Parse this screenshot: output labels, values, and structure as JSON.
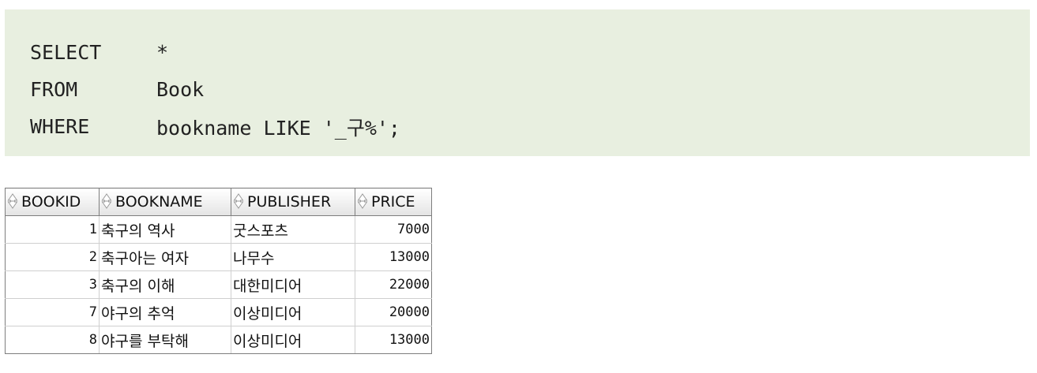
{
  "query": {
    "lines": [
      {
        "keyword": "SELECT",
        "expr": "*"
      },
      {
        "keyword": "FROM",
        "expr": "Book"
      },
      {
        "keyword": "WHERE",
        "expr": "bookname LIKE '_구%';"
      }
    ]
  },
  "results": {
    "columns": [
      "BOOKID",
      "BOOKNAME",
      "PUBLISHER",
      "PRICE"
    ],
    "rows": [
      [
        "1",
        "축구의 역사",
        "굿스포츠",
        "7000"
      ],
      [
        "2",
        "축구아는 여자",
        "나무수",
        "13000"
      ],
      [
        "3",
        "축구의 이해",
        "대한미디어",
        "22000"
      ],
      [
        "7",
        "야구의 추억",
        "이상미디어",
        "20000"
      ],
      [
        "8",
        "야구를 부탁해",
        "이상미디어",
        "13000"
      ]
    ]
  }
}
